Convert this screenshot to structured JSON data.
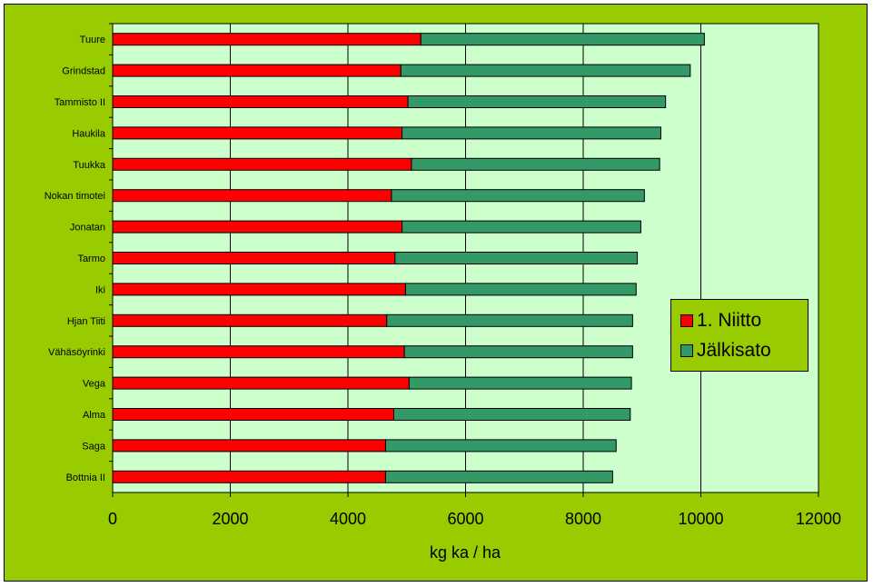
{
  "chart_data": {
    "type": "bar",
    "orientation": "horizontal",
    "stacked": true,
    "categories": [
      "Tuure",
      "Grindstad",
      "Tammisto II",
      "Haukila",
      "Tuukka",
      "Nokan timotei",
      "Jonatan",
      "Tarmo",
      "Iki",
      "Hjan Tiiti",
      "Vähäsöyrinki",
      "Vega",
      "Alma",
      "Saga",
      "Bottnia II"
    ],
    "series": [
      {
        "name": "1. Niitto",
        "color": "#ff0000",
        "values": [
          5240,
          4900,
          5020,
          4920,
          5080,
          4740,
          4920,
          4800,
          4980,
          4660,
          4960,
          5040,
          4780,
          4640,
          4640
        ]
      },
      {
        "name": "Jälkisato",
        "color": "#339966",
        "values": [
          4820,
          4920,
          4380,
          4400,
          4220,
          4300,
          4060,
          4120,
          3920,
          4180,
          3880,
          3780,
          4020,
          3920,
          3860
        ]
      }
    ],
    "xlabel": "kg ka / ha",
    "xlim": [
      0,
      12000
    ],
    "xticks": [
      0,
      2000,
      4000,
      6000,
      8000,
      10000,
      12000
    ],
    "grid": "vertical",
    "legend_position": "right",
    "plot_background": "#ccffcc",
    "chart_background": "#99cc00"
  }
}
